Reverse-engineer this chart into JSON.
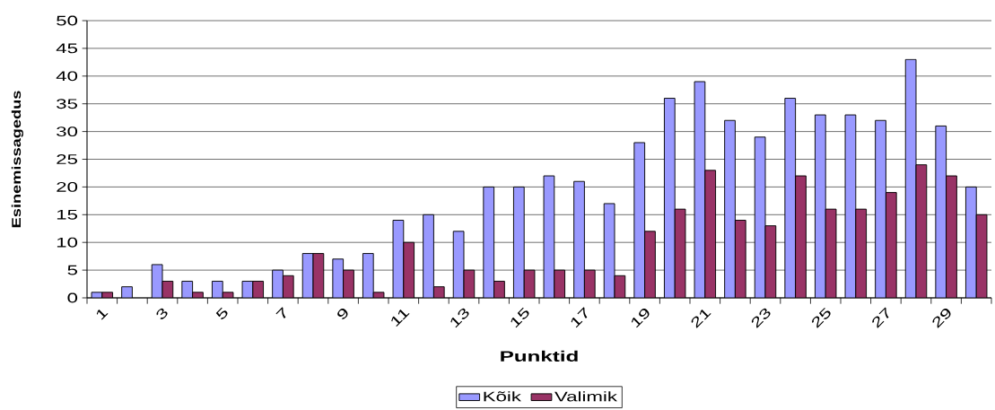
{
  "chart_data": {
    "type": "bar",
    "xlabel": "Punktid",
    "ylabel": "Esinemissagedus",
    "categories": [
      "1",
      null,
      "3",
      null,
      "5",
      null,
      "7",
      null,
      "9",
      null,
      "11",
      null,
      "13",
      null,
      "15",
      null,
      "17",
      null,
      "19",
      null,
      "21",
      null,
      "23",
      null,
      "25",
      null,
      "27",
      null,
      "29",
      null
    ],
    "series": [
      {
        "name": "Kõik",
        "color": "#9999ff",
        "values": [
          1,
          2,
          6,
          3,
          3,
          3,
          5,
          8,
          7,
          8,
          14,
          15,
          12,
          20,
          20,
          22,
          21,
          17,
          28,
          36,
          39,
          32,
          29,
          36,
          33,
          33,
          32,
          43,
          31,
          20
        ]
      },
      {
        "name": "Valimik",
        "color": "#993366",
        "values": [
          1,
          null,
          3,
          1,
          1,
          3,
          4,
          8,
          5,
          1,
          10,
          2,
          5,
          3,
          5,
          5,
          5,
          4,
          12,
          16,
          23,
          14,
          13,
          22,
          16,
          16,
          19,
          24,
          22,
          15
        ]
      }
    ],
    "ylim": [
      0,
      50
    ],
    "yticks": [
      0,
      5,
      10,
      15,
      20,
      25,
      30,
      35,
      40,
      45,
      50
    ],
    "grid": "y",
    "legend": "bottom"
  }
}
